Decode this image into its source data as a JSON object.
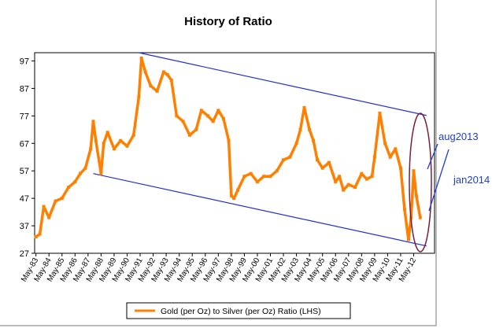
{
  "chart_data": {
    "type": "line",
    "title": "History of Ratio",
    "xlabel": "",
    "ylabel": "",
    "ylim": [
      27,
      100
    ],
    "y_ticks": [
      27,
      37,
      47,
      57,
      67,
      77,
      87,
      97
    ],
    "x_ticks": [
      "May-83",
      "May-84",
      "May-85",
      "May-86",
      "May-87",
      "May-88",
      "May-89",
      "May-90",
      "May-91",
      "May-92",
      "May-93",
      "May-94",
      "May-95",
      "May-96",
      "May-97",
      "May-98",
      "May-99",
      "May-00",
      "May-01",
      "May-02",
      "May-03",
      "May-04",
      "May-05",
      "May-06",
      "May-07",
      "May-08",
      "May-09",
      "May-10",
      "May-11",
      "May-12"
    ],
    "grid": "off",
    "legend_position": "bottom",
    "series": [
      {
        "name": "Gold (per Oz) to Silver (per Oz) Ratio (LHS)",
        "color": "#ff8000",
        "x": [
          1983.0,
          1983.3,
          1983.6,
          1984.0,
          1984.5,
          1985.0,
          1985.5,
          1986.0,
          1986.4,
          1986.8,
          1987.2,
          1987.4,
          1987.6,
          1988.0,
          1988.2,
          1988.5,
          1989.0,
          1989.5,
          1990.0,
          1990.5,
          1990.9,
          1991.1,
          1991.4,
          1991.8,
          1992.3,
          1992.8,
          1993.1,
          1993.4,
          1993.8,
          1994.3,
          1994.8,
          1995.3,
          1995.7,
          1996.2,
          1996.6,
          1997.0,
          1997.4,
          1997.8,
          1998.0,
          1998.2,
          1998.5,
          1999.0,
          1999.5,
          2000.0,
          2000.5,
          2001.0,
          2001.5,
          2002.0,
          2002.5,
          2003.0,
          2003.3,
          2003.6,
          2004.0,
          2004.3,
          2004.6,
          2005.0,
          2005.5,
          2006.0,
          2006.3,
          2006.6,
          2007.0,
          2007.5,
          2008.0,
          2008.4,
          2008.8,
          2009.0,
          2009.4,
          2009.8,
          2010.2,
          2010.6,
          2011.0,
          2011.3,
          2011.6,
          2011.8,
          2012.0,
          2012.2,
          2012.5
        ],
        "values": [
          33,
          34,
          44,
          40,
          46,
          47,
          51,
          53,
          56,
          58,
          65,
          75,
          68,
          56,
          67,
          71,
          65,
          68,
          66,
          70,
          84,
          98,
          93,
          88,
          86,
          93,
          92,
          90,
          77,
          75,
          70,
          72,
          79,
          77,
          75,
          79,
          76,
          68,
          48,
          47,
          50,
          55,
          56,
          53,
          55,
          55,
          57,
          61,
          62,
          67,
          72,
          80,
          72,
          68,
          61,
          58,
          60,
          53,
          55,
          50,
          52,
          51,
          56,
          54,
          55,
          62,
          78,
          67,
          62,
          65,
          58,
          43,
          32,
          40,
          57,
          48,
          40
        ]
      }
    ],
    "trend_lines": [
      {
        "x": [
          1990.9,
          2012.5
        ],
        "values": [
          100,
          77
        ]
      },
      {
        "x": [
          1987.4,
          2012.5
        ],
        "values": [
          56,
          29.5
        ]
      }
    ],
    "annotations": [
      "aug2013",
      "jan2014"
    ]
  }
}
